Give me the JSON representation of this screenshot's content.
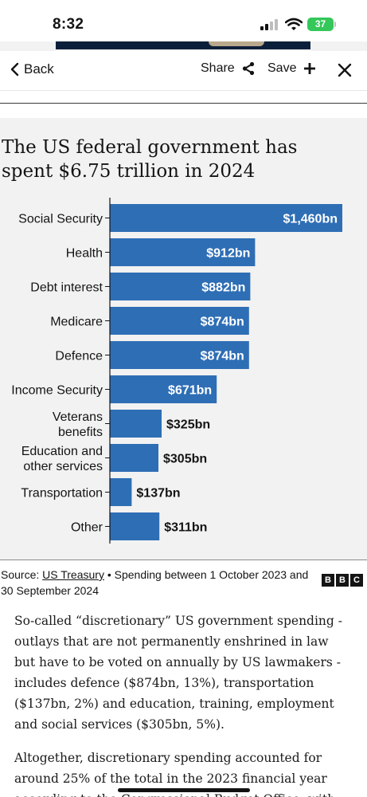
{
  "status_bar": {
    "time": "8:32",
    "battery": "37"
  },
  "nav": {
    "back_label": "Back",
    "share_label": "Share",
    "save_label": "Save"
  },
  "chart": {
    "title": "The US federal government has spent $6.75 trillion in 2024",
    "bar_color": "#2e6eb5"
  },
  "chart_data": {
    "type": "bar",
    "orientation": "horizontal",
    "title": "The US federal government has spent $6.75 trillion in 2024",
    "xlabel": "",
    "ylabel": "",
    "grid": false,
    "unit": "$bn",
    "categories": [
      "Social Security",
      "Health",
      "Debt interest",
      "Medicare",
      "Defence",
      "Income Security",
      "Veterans benefits",
      "Education and other services",
      "Transportation",
      "Other"
    ],
    "category_lines": [
      [
        "Social Security"
      ],
      [
        "Health"
      ],
      [
        "Debt interest"
      ],
      [
        "Medicare"
      ],
      [
        "Defence"
      ],
      [
        "Income Security"
      ],
      [
        "Veterans",
        "benefits"
      ],
      [
        "Education and",
        "other services"
      ],
      [
        "Transportation"
      ],
      [
        "Other"
      ]
    ],
    "values": [
      1460,
      912,
      882,
      874,
      874,
      671,
      325,
      305,
      137,
      311
    ],
    "value_labels": [
      "$1,460bn",
      "$912bn",
      "$882bn",
      "$874bn",
      "$874bn",
      "$671bn",
      "$325bn",
      "$305bn",
      "$137bn",
      "$311bn"
    ],
    "xlim": [
      0,
      1460
    ]
  },
  "source": {
    "prefix": "Source: ",
    "link": "US Treasury",
    "rest": " • Spending between 1 October 2023 and 30 September 2024",
    "logo": [
      "B",
      "B",
      "C"
    ]
  },
  "article": {
    "paragraphs": [
      "So-called “discretionary” US government spending - outlays that are not permanently enshrined in law but have to be voted on annually by US lawmakers - includes defence ($874bn, 13%), transportation ($137bn, 2%) and education, training, employment and social services ($305bn, 5%).",
      "Altogether, discretionary spending accounted for around 25% of the total in the 2023 financial year according to the Congressional Budget Office, with"
    ]
  }
}
